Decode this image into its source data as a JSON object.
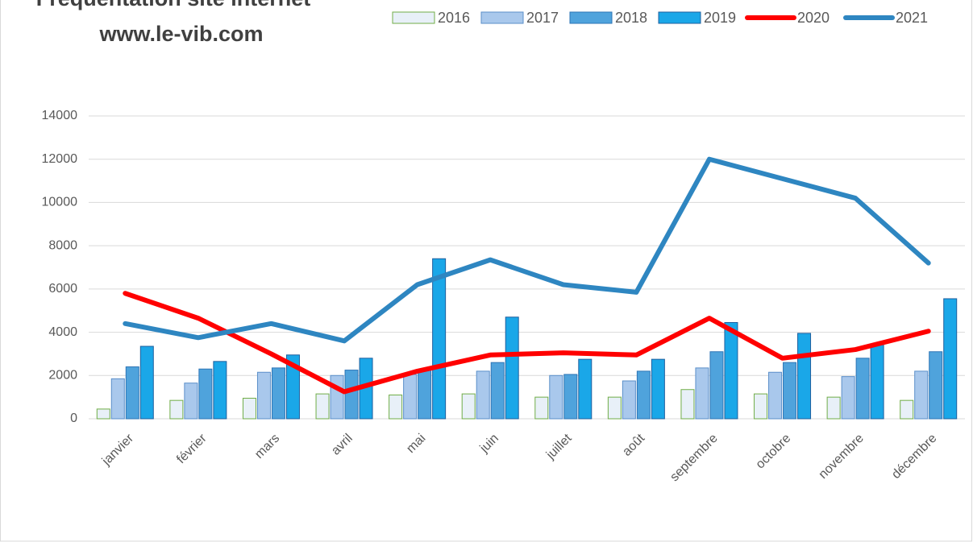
{
  "chart_data": {
    "type": "bar",
    "title": "Fréquentation site internet",
    "subtitle": "www.le-vib.com",
    "categories": [
      "janvier",
      "février",
      "mars",
      "avril",
      "mai",
      "juin",
      "juillet",
      "août",
      "septembre",
      "octobre",
      "novembre",
      "décembre"
    ],
    "series": [
      {
        "name": "2016",
        "type": "bar",
        "color": "#e8f0f8",
        "stroke": "#70ad47",
        "values": [
          450,
          850,
          950,
          1150,
          1100,
          1150,
          1000,
          1000,
          1350,
          1150,
          1000,
          850
        ]
      },
      {
        "name": "2017",
        "type": "bar",
        "color": "#a9c8ec",
        "stroke": "#5b8fc9",
        "values": [
          1850,
          1650,
          2150,
          2000,
          2050,
          2200,
          2000,
          1750,
          2350,
          2150,
          1950,
          2200
        ]
      },
      {
        "name": "2018",
        "type": "bar",
        "color": "#4fa3dc",
        "stroke": "#2e75b6",
        "values": [
          2400,
          2300,
          2350,
          2250,
          2250,
          2600,
          2050,
          2200,
          3100,
          2600,
          2800,
          3100
        ]
      },
      {
        "name": "2019",
        "type": "bar",
        "color": "#1aa7e8",
        "stroke": "#1f5f9e",
        "values": [
          3350,
          2650,
          2950,
          2800,
          7400,
          4700,
          2750,
          2750,
          4450,
          3950,
          3450,
          5550
        ]
      },
      {
        "name": "2020",
        "type": "line",
        "color": "#ff0000",
        "values": [
          5800,
          4650,
          3000,
          1250,
          2200,
          2950,
          3050,
          2950,
          4650,
          2800,
          3200,
          4050
        ]
      },
      {
        "name": "2021",
        "type": "line",
        "color": "#2e86c1",
        "values": [
          4400,
          3750,
          4400,
          3600,
          6200,
          7350,
          6200,
          5850,
          12000,
          11100,
          10200,
          7200
        ]
      }
    ],
    "ylim": [
      0,
      14000
    ],
    "yticks": [
      0,
      2000,
      4000,
      6000,
      8000,
      10000,
      12000,
      14000
    ],
    "grid": true,
    "legend": "top"
  }
}
